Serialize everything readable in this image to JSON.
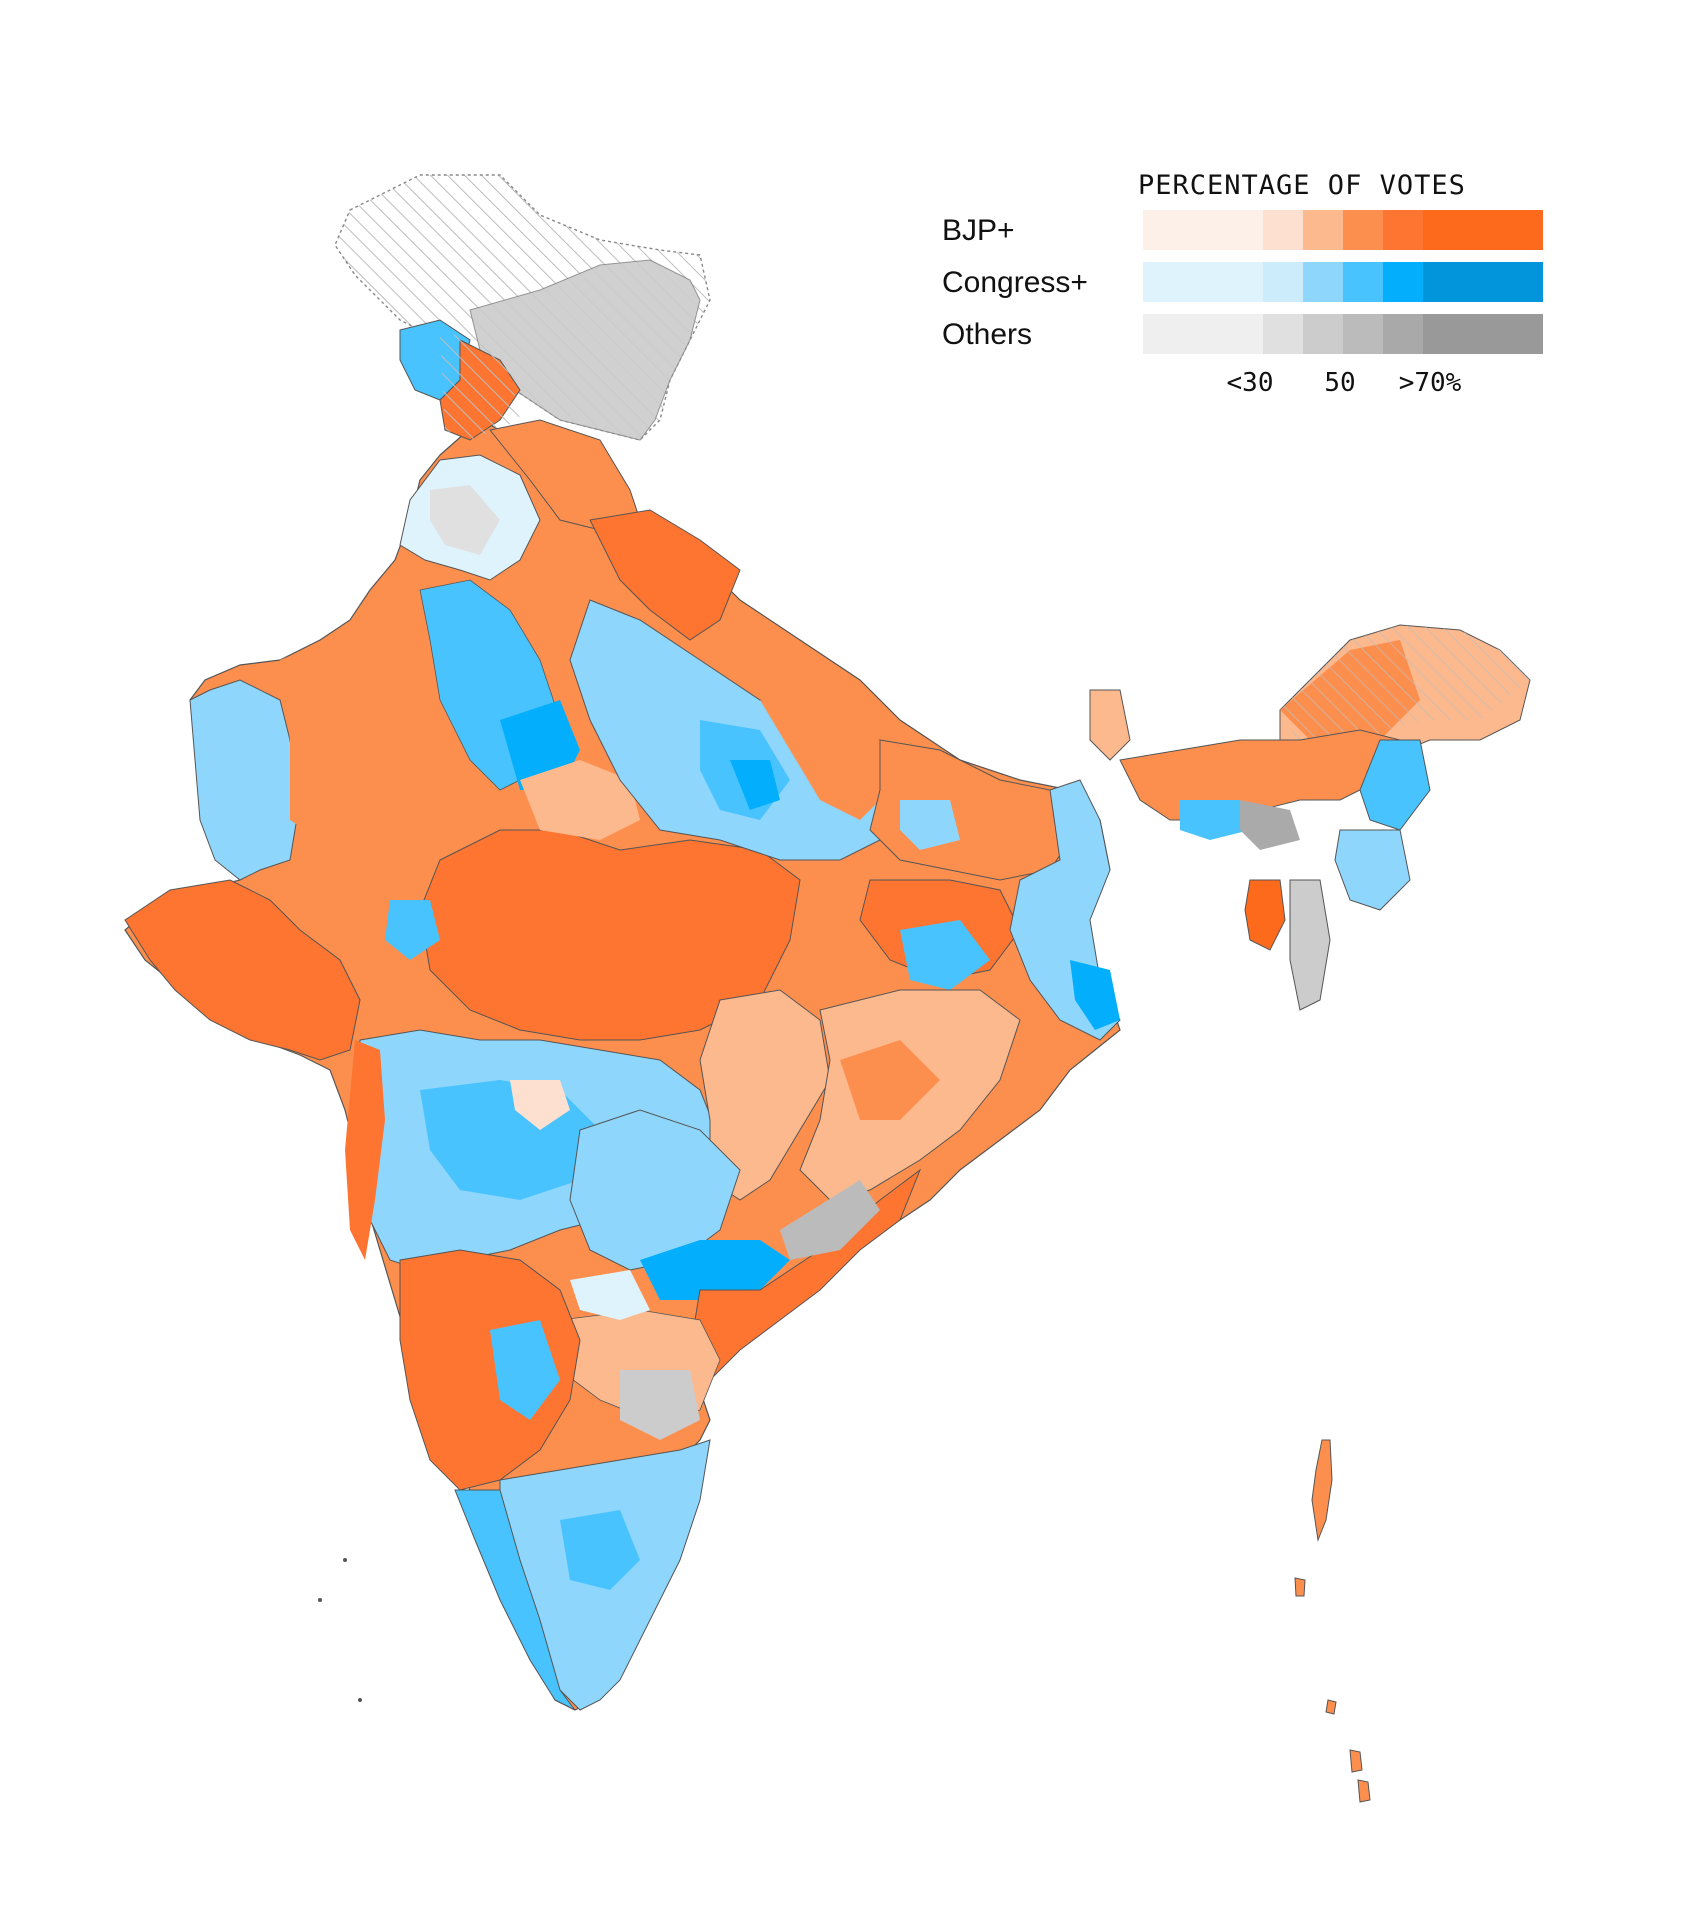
{
  "legend": {
    "title": "PERCENTAGE OF VOTES",
    "rows": [
      {
        "label": "BJP+",
        "colors": [
          "#fdf0e9",
          "#fdf0e9",
          "#fdf0e9",
          "#fde0cf",
          "#fdb98e",
          "#fd8f4e",
          "#fd7530",
          "#fe6a1b",
          "#fe6a1b",
          "#fe6a1b"
        ]
      },
      {
        "label": "Congress+",
        "colors": [
          "#dff3fd",
          "#dff3fd",
          "#dff3fd",
          "#cdecfb",
          "#8fd6fd",
          "#48c3fd",
          "#03aefd",
          "#0295dc",
          "#0295dc",
          "#0295dc"
        ]
      },
      {
        "label": "Others",
        "colors": [
          "#efefef",
          "#efefef",
          "#efefef",
          "#e0e0e0",
          "#cccccc",
          "#bbbbbb",
          "#a9a9a9",
          "#999999",
          "#999999",
          "#999999"
        ]
      }
    ],
    "ticks": [
      "<30",
      "50",
      ">70%"
    ]
  },
  "colors": {
    "bjp_mid": "#fd8f4e",
    "bjp_high": "#fd7530",
    "bjp_low": "#fdb98e",
    "cong_mid": "#48c3fd",
    "cong_low": "#8fd6fd",
    "cong_high": "#03aefd",
    "others": "#cccccc",
    "disputed": "#f2f2f2"
  }
}
